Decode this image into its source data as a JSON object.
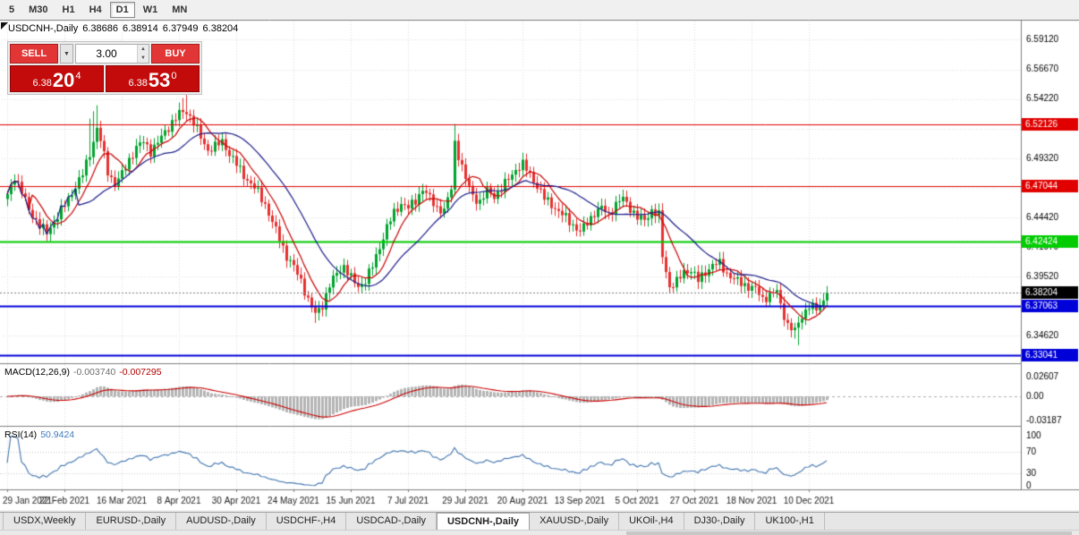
{
  "toolbar": {
    "timeframes": [
      "5",
      "M30",
      "H1",
      "H4",
      "D1",
      "W1",
      "MN"
    ],
    "active_timeframe": "D1"
  },
  "chart_header": {
    "symbol_title": "USDCNH-,Daily",
    "open": "6.38686",
    "high": "6.38914",
    "low": "6.37949",
    "close": "6.38204"
  },
  "trade_panel": {
    "sell_label": "SELL",
    "buy_label": "BUY",
    "volume": "3.00",
    "bid": {
      "big_figure": "6.38",
      "pips": "20",
      "pipette": "4"
    },
    "ask": {
      "big_figure": "6.38",
      "pips": "53",
      "pipette": "0"
    }
  },
  "indicator_labels": {
    "macd_name": "MACD(12,26,9)",
    "macd_value_main": "-0.003740",
    "macd_value_signal": "-0.007295",
    "rsi_name": "RSI(14)",
    "rsi_value": "50.9424"
  },
  "colors": {
    "sell_buy_button": "#E23535",
    "price_box": "#C30B0B",
    "candle_up": "#00A32E",
    "candle_down": "#E63030",
    "resistance_line": "#E00000",
    "support_green_line": "#00CC00",
    "support_blue_line": "#0000D8",
    "current_price_tag": "#000000"
  },
  "chart_data": {
    "type": "candlestick",
    "symbol": "USDCNH-",
    "timeframe": "Daily",
    "num_candles": 230,
    "last_close": 6.38204,
    "ylim": [
      6.3251,
      6.6063
    ],
    "y_ticks": [
      6.5912,
      6.5667,
      6.5422,
      6.5177,
      6.4932,
      6.4687,
      6.4442,
      6.4197,
      6.3952,
      6.3707,
      6.3462
    ],
    "x_labels": [
      "29 Jan 2021",
      "22 Feb 2021",
      "16 Mar 2021",
      "8 Apr 2021",
      "30 Apr 2021",
      "24 May 2021",
      "15 Jun 2021",
      "7 Jul 2021",
      "29 Jul 2021",
      "20 Aug 2021",
      "13 Sep 2021",
      "5 Oct 2021",
      "27 Oct 2021",
      "18 Nov 2021",
      "10 Dec 2021"
    ],
    "x_label_every": 16,
    "close_anchors": [
      [
        0,
        6.462
      ],
      [
        2,
        6.478
      ],
      [
        4,
        6.466
      ],
      [
        6,
        6.45
      ],
      [
        9,
        6.438
      ],
      [
        11,
        6.431
      ],
      [
        13,
        6.441
      ],
      [
        15,
        6.45
      ],
      [
        17,
        6.459
      ],
      [
        19,
        6.47
      ],
      [
        21,
        6.48
      ],
      [
        23,
        6.497
      ],
      [
        25,
        6.518
      ],
      [
        26,
        6.508
      ],
      [
        28,
        6.482
      ],
      [
        30,
        6.472
      ],
      [
        32,
        6.48
      ],
      [
        34,
        6.492
      ],
      [
        36,
        6.502
      ],
      [
        38,
        6.507
      ],
      [
        40,
        6.499
      ],
      [
        42,
        6.506
      ],
      [
        44,
        6.515
      ],
      [
        46,
        6.523
      ],
      [
        48,
        6.53
      ],
      [
        50,
        6.532
      ],
      [
        52,
        6.523
      ],
      [
        54,
        6.51
      ],
      [
        56,
        6.5
      ],
      [
        58,
        6.503
      ],
      [
        60,
        6.507
      ],
      [
        62,
        6.497
      ],
      [
        64,
        6.488
      ],
      [
        66,
        6.479
      ],
      [
        68,
        6.472
      ],
      [
        70,
        6.465
      ],
      [
        72,
        6.455
      ],
      [
        74,
        6.44
      ],
      [
        76,
        6.427
      ],
      [
        78,
        6.412
      ],
      [
        80,
        6.403
      ],
      [
        82,
        6.392
      ],
      [
        84,
        6.376
      ],
      [
        86,
        6.364
      ],
      [
        88,
        6.372
      ],
      [
        90,
        6.388
      ],
      [
        92,
        6.398
      ],
      [
        94,
        6.404
      ],
      [
        96,
        6.394
      ],
      [
        98,
        6.387
      ],
      [
        100,
        6.392
      ],
      [
        102,
        6.404
      ],
      [
        104,
        6.42
      ],
      [
        106,
        6.436
      ],
      [
        108,
        6.448
      ],
      [
        110,
        6.456
      ],
      [
        112,
        6.452
      ],
      [
        114,
        6.458
      ],
      [
        116,
        6.468
      ],
      [
        118,
        6.46
      ],
      [
        120,
        6.452
      ],
      [
        122,
        6.45
      ],
      [
        124,
        6.468
      ],
      [
        125,
        6.506
      ],
      [
        126,
        6.496
      ],
      [
        128,
        6.476
      ],
      [
        130,
        6.462
      ],
      [
        132,
        6.457
      ],
      [
        134,
        6.466
      ],
      [
        136,
        6.462
      ],
      [
        138,
        6.468
      ],
      [
        140,
        6.476
      ],
      [
        142,
        6.484
      ],
      [
        144,
        6.488
      ],
      [
        146,
        6.48
      ],
      [
        148,
        6.47
      ],
      [
        150,
        6.46
      ],
      [
        152,
        6.455
      ],
      [
        154,
        6.449
      ],
      [
        156,
        6.444
      ],
      [
        158,
        6.438
      ],
      [
        160,
        6.432
      ],
      [
        162,
        6.44
      ],
      [
        164,
        6.448
      ],
      [
        166,
        6.452
      ],
      [
        168,
        6.447
      ],
      [
        170,
        6.455
      ],
      [
        172,
        6.46
      ],
      [
        174,
        6.452
      ],
      [
        176,
        6.444
      ],
      [
        178,
        6.442
      ],
      [
        180,
        6.45
      ],
      [
        182,
        6.446
      ],
      [
        183,
        6.412
      ],
      [
        185,
        6.387
      ],
      [
        187,
        6.391
      ],
      [
        189,
        6.399
      ],
      [
        191,
        6.401
      ],
      [
        193,
        6.392
      ],
      [
        195,
        6.399
      ],
      [
        197,
        6.405
      ],
      [
        199,
        6.406
      ],
      [
        201,
        6.398
      ],
      [
        203,
        6.393
      ],
      [
        205,
        6.39
      ],
      [
        207,
        6.387
      ],
      [
        209,
        6.385
      ],
      [
        211,
        6.377
      ],
      [
        213,
        6.38
      ],
      [
        215,
        6.383
      ],
      [
        216,
        6.372
      ],
      [
        218,
        6.355
      ],
      [
        220,
        6.35
      ],
      [
        221,
        6.357
      ],
      [
        222,
        6.363
      ],
      [
        224,
        6.371
      ],
      [
        226,
        6.368
      ],
      [
        228,
        6.376
      ],
      [
        229,
        6.381
      ]
    ],
    "wick_overrides": [
      {
        "i": 23,
        "high": 6.526
      },
      {
        "i": 24,
        "high": 6.532
      },
      {
        "i": 25,
        "high": 6.537
      },
      {
        "i": 49,
        "high": 6.543
      },
      {
        "i": 50,
        "high": 6.546
      },
      {
        "i": 125,
        "high": 6.5215
      },
      {
        "i": 86,
        "low": 6.357
      },
      {
        "i": 87,
        "low": 6.359
      },
      {
        "i": 220,
        "low": 6.344
      },
      {
        "i": 221,
        "low": 6.3385
      }
    ],
    "h_lines": [
      {
        "price": 6.52126,
        "label": "6.52126",
        "color": "#E00000",
        "width": 1
      },
      {
        "price": 6.47044,
        "label": "6.47044",
        "color": "#E00000",
        "width": 1
      },
      {
        "price": 6.42424,
        "label": "6.42424",
        "color": "#00CC00",
        "width": 2
      },
      {
        "price": 6.37063,
        "label": "6.37063",
        "color": "#0000D8",
        "width": 2
      },
      {
        "price": 6.33041,
        "label": "6.33041",
        "color": "#0000D8",
        "width": 2
      }
    ],
    "current_price": {
      "value": 6.38204,
      "label": "6.38204",
      "color": "#000000"
    },
    "moving_averages": [
      {
        "period": 8,
        "color": "#C80000"
      },
      {
        "period": 21,
        "color": "#1C1C8A"
      }
    ],
    "candle_colors": {
      "up": "#00A32E",
      "down": "#E63030"
    },
    "macd": {
      "fast": 12,
      "slow": 26,
      "signal": 9,
      "ylim": [
        -0.0379,
        0.0415
      ],
      "ticks": [
        {
          "v": 0.02607,
          "label": "0.02607"
        },
        {
          "v": 0,
          "label": "0.00"
        },
        {
          "v": -0.03187,
          "label": "-0.03187"
        }
      ],
      "bar_color": "#B4B4B4",
      "signal_color": "#C80000"
    },
    "rsi": {
      "period": 14,
      "value_max_at_top": 118,
      "ticks": [
        100,
        70,
        30,
        0
      ],
      "levels": [
        70,
        30
      ],
      "line_color": "#4175B0"
    }
  },
  "bottom_tabs": {
    "items": [
      "USDX,Weekly",
      "EURUSD-,Daily",
      "AUDUSD-,Daily",
      "USDCHF-,H4",
      "USDCAD-,Daily",
      "USDCNH-,Daily",
      "XAUUSD-,Daily",
      "UKOil-,H4",
      "DJ30-,Daily",
      "UK100-,H1"
    ],
    "active": "USDCNH-,Daily"
  }
}
